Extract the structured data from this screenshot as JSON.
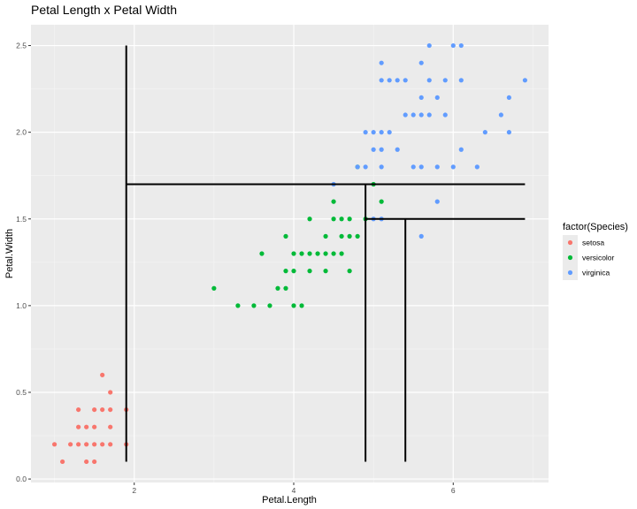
{
  "chart_data": {
    "type": "scatter",
    "title": "Petal Length x Petal Width",
    "xlabel": "Petal.Length",
    "ylabel": "Petal.Width",
    "xlim": [
      0.705,
      7.195
    ],
    "ylim": [
      -0.02,
      2.62
    ],
    "xticks": [
      2,
      4,
      6
    ],
    "yticks": [
      0.0,
      0.5,
      1.0,
      1.5,
      2.0,
      2.5
    ],
    "xtick_labels": [
      "2",
      "4",
      "6"
    ],
    "ytick_labels": [
      "0.0",
      "0.5",
      "1.0",
      "1.5",
      "2.0",
      "2.5"
    ],
    "grid": true,
    "legend": {
      "title": "factor(Species)",
      "placement": "right"
    },
    "series": [
      {
        "name": "setosa",
        "color": "#F8766D",
        "points": [
          [
            1.0,
            0.2
          ],
          [
            1.1,
            0.1
          ],
          [
            1.2,
            0.2
          ],
          [
            1.3,
            0.2
          ],
          [
            1.3,
            0.3
          ],
          [
            1.3,
            0.4
          ],
          [
            1.4,
            0.1
          ],
          [
            1.4,
            0.2
          ],
          [
            1.4,
            0.3
          ],
          [
            1.5,
            0.1
          ],
          [
            1.5,
            0.2
          ],
          [
            1.5,
            0.3
          ],
          [
            1.5,
            0.4
          ],
          [
            1.6,
            0.2
          ],
          [
            1.6,
            0.4
          ],
          [
            1.6,
            0.6
          ],
          [
            1.7,
            0.2
          ],
          [
            1.7,
            0.3
          ],
          [
            1.7,
            0.4
          ],
          [
            1.7,
            0.5
          ],
          [
            1.9,
            0.2
          ],
          [
            1.9,
            0.4
          ]
        ]
      },
      {
        "name": "versicolor",
        "color": "#00BA38",
        "points": [
          [
            3.0,
            1.1
          ],
          [
            3.3,
            1.0
          ],
          [
            3.5,
            1.0
          ],
          [
            3.6,
            1.3
          ],
          [
            3.7,
            1.0
          ],
          [
            3.8,
            1.1
          ],
          [
            3.9,
            1.1
          ],
          [
            3.9,
            1.2
          ],
          [
            3.9,
            1.4
          ],
          [
            4.0,
            1.0
          ],
          [
            4.0,
            1.2
          ],
          [
            4.0,
            1.3
          ],
          [
            4.1,
            1.0
          ],
          [
            4.1,
            1.3
          ],
          [
            4.2,
            1.2
          ],
          [
            4.2,
            1.3
          ],
          [
            4.2,
            1.5
          ],
          [
            4.3,
            1.3
          ],
          [
            4.4,
            1.2
          ],
          [
            4.4,
            1.3
          ],
          [
            4.4,
            1.4
          ],
          [
            4.5,
            1.3
          ],
          [
            4.5,
            1.5
          ],
          [
            4.5,
            1.6
          ],
          [
            4.6,
            1.3
          ],
          [
            4.6,
            1.4
          ],
          [
            4.6,
            1.5
          ],
          [
            4.7,
            1.2
          ],
          [
            4.7,
            1.4
          ],
          [
            4.7,
            1.5
          ],
          [
            4.8,
            1.4
          ],
          [
            4.8,
            1.8
          ],
          [
            4.9,
            1.5
          ],
          [
            5.0,
            1.7
          ],
          [
            5.1,
            1.6
          ]
        ]
      },
      {
        "name": "virginica",
        "color": "#619CFF",
        "points": [
          [
            4.5,
            1.7
          ],
          [
            4.8,
            1.8
          ],
          [
            4.9,
            1.8
          ],
          [
            4.9,
            2.0
          ],
          [
            5.0,
            1.5
          ],
          [
            5.0,
            1.9
          ],
          [
            5.0,
            2.0
          ],
          [
            5.1,
            1.5
          ],
          [
            5.1,
            1.8
          ],
          [
            5.1,
            1.9
          ],
          [
            5.1,
            2.0
          ],
          [
            5.1,
            2.3
          ],
          [
            5.1,
            2.4
          ],
          [
            5.2,
            2.0
          ],
          [
            5.2,
            2.3
          ],
          [
            5.3,
            1.9
          ],
          [
            5.3,
            2.3
          ],
          [
            5.4,
            2.1
          ],
          [
            5.4,
            2.3
          ],
          [
            5.5,
            1.8
          ],
          [
            5.5,
            2.1
          ],
          [
            5.6,
            1.4
          ],
          [
            5.6,
            1.8
          ],
          [
            5.6,
            2.1
          ],
          [
            5.6,
            2.2
          ],
          [
            5.6,
            2.4
          ],
          [
            5.7,
            2.1
          ],
          [
            5.7,
            2.3
          ],
          [
            5.7,
            2.5
          ],
          [
            5.8,
            1.6
          ],
          [
            5.8,
            1.8
          ],
          [
            5.8,
            2.2
          ],
          [
            5.9,
            2.1
          ],
          [
            5.9,
            2.3
          ],
          [
            6.0,
            1.8
          ],
          [
            6.0,
            2.5
          ],
          [
            6.1,
            1.9
          ],
          [
            6.1,
            2.3
          ],
          [
            6.1,
            2.5
          ],
          [
            6.3,
            1.8
          ],
          [
            6.4,
            2.0
          ],
          [
            6.6,
            2.1
          ],
          [
            6.7,
            2.0
          ],
          [
            6.7,
            2.2
          ],
          [
            6.9,
            2.3
          ]
        ]
      }
    ],
    "annotation_lines": [
      {
        "x1": 1.9,
        "y1": 0.1,
        "x2": 1.9,
        "y2": 2.5
      },
      {
        "x1": 1.9,
        "y1": 1.7,
        "x2": 6.9,
        "y2": 1.7
      },
      {
        "x1": 4.9,
        "y1": 0.1,
        "x2": 4.9,
        "y2": 1.7
      },
      {
        "x1": 4.9,
        "y1": 1.5,
        "x2": 6.9,
        "y2": 1.5
      },
      {
        "x1": 5.4,
        "y1": 0.1,
        "x2": 5.4,
        "y2": 1.5
      }
    ]
  }
}
